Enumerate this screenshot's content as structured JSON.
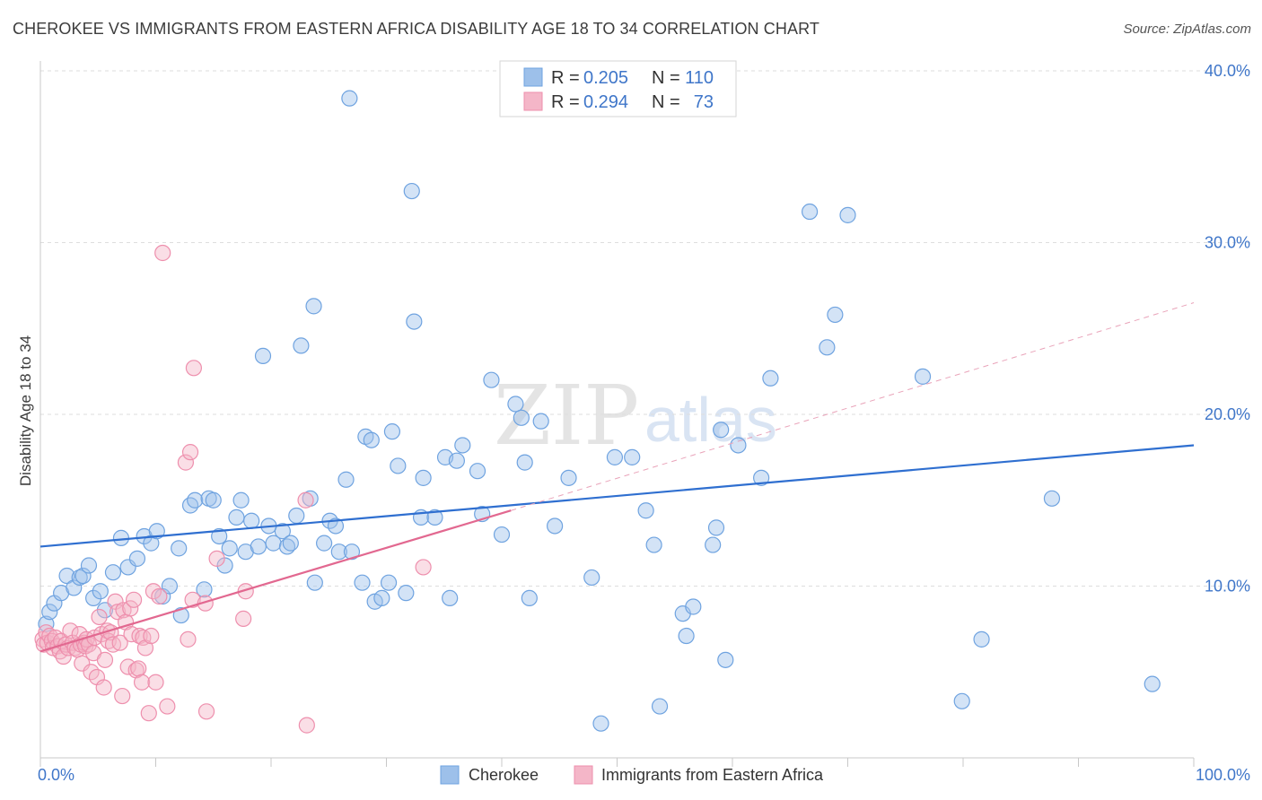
{
  "title": "CHEROKEE VS IMMIGRANTS FROM EASTERN AFRICA DISABILITY AGE 18 TO 34 CORRELATION CHART",
  "source": "Source: ZipAtlas.com",
  "watermark": {
    "zip": "ZIP",
    "atlas": "atlas"
  },
  "legend": {
    "r_label": "R =",
    "n_label": "N =",
    "entries": [
      {
        "name": "Cherokee",
        "r": "0.205",
        "n": "110",
        "color": "#9dc0ea"
      },
      {
        "name": "Immigrants from Eastern Africa",
        "r": "0.294",
        "n": "73",
        "color": "#f4b6c8"
      }
    ]
  },
  "chart_data": {
    "type": "scatter",
    "title": "CHEROKEE VS IMMIGRANTS FROM EASTERN AFRICA DISABILITY AGE 18 TO 34 CORRELATION CHART",
    "xlabel": "",
    "ylabel": "Disability Age 18 to 34",
    "xlim": [
      0,
      100
    ],
    "ylim": [
      0,
      40
    ],
    "x_tick_labels": [
      "0.0%",
      "100.0%"
    ],
    "y_ticks": [
      10,
      20,
      30,
      40
    ],
    "y_tick_labels": [
      "10.0%",
      "20.0%",
      "30.0%",
      "40.0%"
    ],
    "series": [
      {
        "name": "Cherokee",
        "color": "#6fa3e0",
        "trend": {
          "x": [
            0,
            100
          ],
          "y": [
            12.3,
            18.2
          ]
        },
        "points": [
          [
            0.5,
            7.8
          ],
          [
            0.8,
            8.5
          ],
          [
            1.2,
            9.0
          ],
          [
            1.8,
            9.6
          ],
          [
            2.3,
            10.6
          ],
          [
            2.9,
            9.9
          ],
          [
            3.4,
            10.5
          ],
          [
            3.7,
            10.6
          ],
          [
            4.2,
            11.2
          ],
          [
            4.6,
            9.3
          ],
          [
            5.2,
            9.7
          ],
          [
            5.6,
            8.6
          ],
          [
            6.3,
            10.8
          ],
          [
            7.0,
            12.8
          ],
          [
            7.6,
            11.1
          ],
          [
            8.4,
            11.6
          ],
          [
            9.0,
            12.9
          ],
          [
            9.6,
            12.5
          ],
          [
            10.1,
            13.2
          ],
          [
            10.6,
            9.4
          ],
          [
            11.2,
            10.0
          ],
          [
            12.0,
            12.2
          ],
          [
            12.2,
            8.3
          ],
          [
            13.0,
            14.7
          ],
          [
            13.4,
            15.0
          ],
          [
            14.2,
            9.8
          ],
          [
            14.6,
            15.1
          ],
          [
            15.0,
            15.0
          ],
          [
            15.5,
            12.9
          ],
          [
            16.0,
            11.2
          ],
          [
            16.4,
            12.2
          ],
          [
            17.0,
            14.0
          ],
          [
            17.4,
            15.0
          ],
          [
            17.8,
            12.0
          ],
          [
            18.3,
            13.8
          ],
          [
            18.9,
            12.3
          ],
          [
            19.3,
            23.4
          ],
          [
            19.8,
            13.5
          ],
          [
            20.2,
            12.5
          ],
          [
            21.0,
            13.2
          ],
          [
            21.4,
            12.3
          ],
          [
            21.7,
            12.5
          ],
          [
            22.2,
            14.1
          ],
          [
            22.6,
            24.0
          ],
          [
            23.4,
            15.1
          ],
          [
            23.7,
            26.3
          ],
          [
            23.8,
            10.2
          ],
          [
            24.6,
            12.5
          ],
          [
            25.1,
            13.8
          ],
          [
            25.6,
            13.5
          ],
          [
            25.9,
            12.0
          ],
          [
            26.5,
            16.2
          ],
          [
            27.0,
            12.0
          ],
          [
            26.8,
            38.4
          ],
          [
            27.9,
            10.2
          ],
          [
            28.2,
            18.7
          ],
          [
            28.7,
            18.5
          ],
          [
            29.0,
            9.1
          ],
          [
            29.6,
            9.3
          ],
          [
            30.2,
            10.2
          ],
          [
            30.5,
            19.0
          ],
          [
            31.0,
            17.0
          ],
          [
            31.7,
            9.6
          ],
          [
            32.2,
            33.0
          ],
          [
            32.4,
            25.4
          ],
          [
            33.0,
            14.0
          ],
          [
            33.2,
            16.3
          ],
          [
            34.2,
            14.0
          ],
          [
            35.1,
            17.5
          ],
          [
            35.5,
            9.3
          ],
          [
            36.1,
            17.3
          ],
          [
            36.6,
            18.2
          ],
          [
            37.9,
            16.7
          ],
          [
            38.3,
            14.2
          ],
          [
            39.1,
            22.0
          ],
          [
            40.0,
            13.0
          ],
          [
            41.2,
            20.6
          ],
          [
            41.7,
            19.8
          ],
          [
            42.0,
            17.2
          ],
          [
            42.4,
            9.3
          ],
          [
            43.4,
            19.6
          ],
          [
            44.6,
            13.5
          ],
          [
            45.8,
            16.3
          ],
          [
            47.8,
            10.5
          ],
          [
            49.8,
            17.5
          ],
          [
            48.6,
            2.0
          ],
          [
            51.3,
            17.5
          ],
          [
            52.5,
            14.4
          ],
          [
            53.2,
            12.4
          ],
          [
            53.7,
            3.0
          ],
          [
            55.7,
            8.4
          ],
          [
            56.0,
            7.1
          ],
          [
            56.6,
            8.8
          ],
          [
            58.3,
            12.4
          ],
          [
            58.6,
            13.4
          ],
          [
            59.0,
            19.1
          ],
          [
            59.4,
            5.7
          ],
          [
            60.5,
            18.2
          ],
          [
            62.5,
            16.3
          ],
          [
            63.3,
            22.1
          ],
          [
            66.7,
            31.8
          ],
          [
            68.2,
            23.9
          ],
          [
            68.9,
            25.8
          ],
          [
            70.0,
            31.6
          ],
          [
            76.5,
            22.2
          ],
          [
            79.9,
            3.3
          ],
          [
            81.6,
            6.9
          ],
          [
            87.7,
            15.1
          ],
          [
            96.4,
            4.3
          ]
        ]
      },
      {
        "name": "Immigrants from Eastern Africa",
        "color": "#ee8fad",
        "trend": {
          "x": [
            0,
            40.8
          ],
          "y": [
            6.2,
            14.4
          ]
        },
        "trend_ext": {
          "x": [
            40.8,
            100
          ],
          "y": [
            14.4,
            26.5
          ]
        },
        "points": [
          [
            0.2,
            6.9
          ],
          [
            0.3,
            6.6
          ],
          [
            0.5,
            7.3
          ],
          [
            0.6,
            6.7
          ],
          [
            0.8,
            7.1
          ],
          [
            1.0,
            6.8
          ],
          [
            1.1,
            6.4
          ],
          [
            1.3,
            7.0
          ],
          [
            1.5,
            6.5
          ],
          [
            1.7,
            6.2
          ],
          [
            1.8,
            6.8
          ],
          [
            2.0,
            5.9
          ],
          [
            2.2,
            6.6
          ],
          [
            2.4,
            6.4
          ],
          [
            2.6,
            7.4
          ],
          [
            2.8,
            6.7
          ],
          [
            3.0,
            6.4
          ],
          [
            3.2,
            6.3
          ],
          [
            3.4,
            7.2
          ],
          [
            3.5,
            6.6
          ],
          [
            3.6,
            5.5
          ],
          [
            3.8,
            6.7
          ],
          [
            3.9,
            6.5
          ],
          [
            4.0,
            6.9
          ],
          [
            4.2,
            6.6
          ],
          [
            4.4,
            5.0
          ],
          [
            4.6,
            6.1
          ],
          [
            4.7,
            7.0
          ],
          [
            4.9,
            4.7
          ],
          [
            5.1,
            8.2
          ],
          [
            5.3,
            7.2
          ],
          [
            5.5,
            4.1
          ],
          [
            5.6,
            5.7
          ],
          [
            5.8,
            7.4
          ],
          [
            5.9,
            6.8
          ],
          [
            6.1,
            7.3
          ],
          [
            6.3,
            6.6
          ],
          [
            6.5,
            9.1
          ],
          [
            6.7,
            8.5
          ],
          [
            6.9,
            6.7
          ],
          [
            7.1,
            3.6
          ],
          [
            7.2,
            8.6
          ],
          [
            7.4,
            7.9
          ],
          [
            7.6,
            5.3
          ],
          [
            7.8,
            8.7
          ],
          [
            7.9,
            7.2
          ],
          [
            8.1,
            9.2
          ],
          [
            8.3,
            5.1
          ],
          [
            8.5,
            5.2
          ],
          [
            8.6,
            7.1
          ],
          [
            8.8,
            4.4
          ],
          [
            8.9,
            7.0
          ],
          [
            9.1,
            6.4
          ],
          [
            9.4,
            2.6
          ],
          [
            9.6,
            7.1
          ],
          [
            9.8,
            9.7
          ],
          [
            10.0,
            4.4
          ],
          [
            10.3,
            9.4
          ],
          [
            10.6,
            29.4
          ],
          [
            11.0,
            3.0
          ],
          [
            12.6,
            17.2
          ],
          [
            12.8,
            6.9
          ],
          [
            13.0,
            17.8
          ],
          [
            13.2,
            9.2
          ],
          [
            13.3,
            22.7
          ],
          [
            14.3,
            9.0
          ],
          [
            14.4,
            2.7
          ],
          [
            15.3,
            11.6
          ],
          [
            17.6,
            8.1
          ],
          [
            17.8,
            9.7
          ],
          [
            23.0,
            15.0
          ],
          [
            23.1,
            1.9
          ],
          [
            33.2,
            11.1
          ]
        ]
      }
    ]
  }
}
